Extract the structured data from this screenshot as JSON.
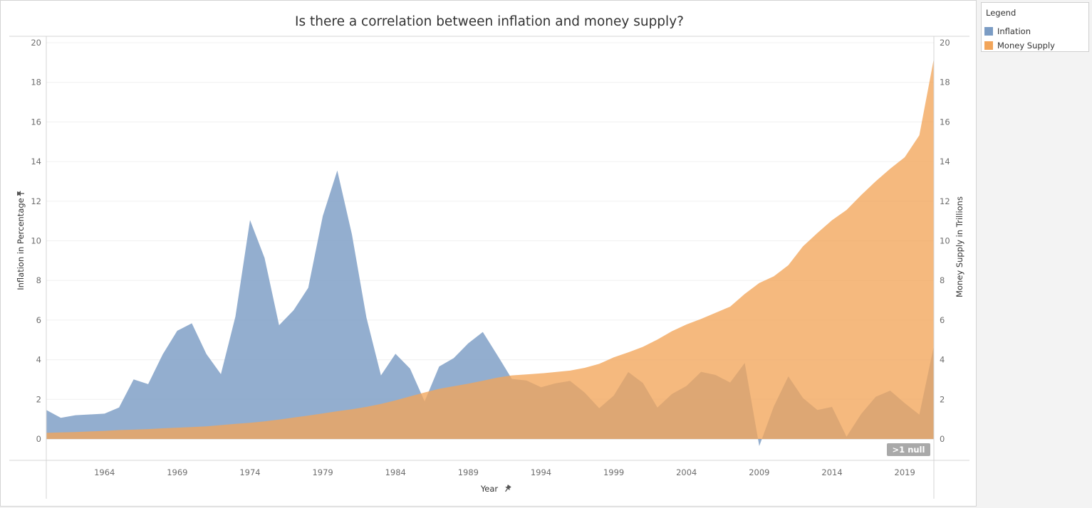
{
  "chart_data": {
    "type": "area",
    "title": "Is there a correlation between inflation and money supply?",
    "xlabel": "Year",
    "ylabel": "Inflation in Percentage",
    "y2label": "Money Supply in Trillions",
    "x_ticks": [
      "1964",
      "1969",
      "1974",
      "1979",
      "1984",
      "1989",
      "1994",
      "1999",
      "2004",
      "2009",
      "2014",
      "2019"
    ],
    "y_ticks": [
      "0",
      "2",
      "4",
      "6",
      "8",
      "10",
      "12",
      "14",
      "16",
      "18",
      "20"
    ],
    "y2_ticks": [
      "0",
      "2",
      "4",
      "6",
      "8",
      "10",
      "12",
      "14",
      "16",
      "18",
      "20"
    ],
    "ylim": [
      0,
      20
    ],
    "y2lim": [
      0,
      20
    ],
    "xlim": [
      1960,
      2021
    ],
    "grid": true,
    "legend_position": "right",
    "null_indicator": ">1 null",
    "series": [
      {
        "name": "Inflation",
        "axis": "left",
        "color": "#7b9cc4",
        "x": [
          1960,
          1961,
          1962,
          1963,
          1964,
          1965,
          1966,
          1967,
          1968,
          1969,
          1970,
          1971,
          1972,
          1973,
          1974,
          1975,
          1976,
          1977,
          1978,
          1979,
          1980,
          1981,
          1982,
          1983,
          1984,
          1985,
          1986,
          1987,
          1988,
          1989,
          1990,
          1991,
          1992,
          1993,
          1994,
          1995,
          1996,
          1997,
          1998,
          1999,
          2000,
          2001,
          2002,
          2003,
          2004,
          2005,
          2006,
          2007,
          2008,
          2009,
          2010,
          2011,
          2012,
          2013,
          2014,
          2015,
          2016,
          2017,
          2018,
          2019,
          2020,
          2021
        ],
        "values": [
          1.46,
          1.07,
          1.2,
          1.24,
          1.28,
          1.59,
          3.01,
          2.77,
          4.27,
          5.46,
          5.84,
          4.29,
          3.27,
          6.18,
          11.05,
          9.14,
          5.74,
          6.5,
          7.63,
          11.25,
          13.55,
          10.33,
          6.13,
          3.21,
          4.3,
          3.55,
          1.9,
          3.66,
          4.08,
          4.83,
          5.4,
          4.23,
          3.03,
          2.95,
          2.61,
          2.81,
          2.93,
          2.34,
          1.55,
          2.19,
          3.38,
          2.83,
          1.59,
          2.27,
          2.68,
          3.39,
          3.23,
          2.85,
          3.84,
          -0.36,
          1.64,
          3.16,
          2.07,
          1.46,
          1.62,
          0.12,
          1.26,
          2.13,
          2.44,
          1.81,
          1.23,
          4.7
        ]
      },
      {
        "name": "Money Supply",
        "axis": "right",
        "color": "#f2a55a",
        "x": [
          1960,
          1961,
          1962,
          1963,
          1964,
          1965,
          1966,
          1967,
          1968,
          1969,
          1970,
          1971,
          1972,
          1973,
          1974,
          1975,
          1976,
          1977,
          1978,
          1979,
          1980,
          1981,
          1982,
          1983,
          1984,
          1985,
          1986,
          1987,
          1988,
          1989,
          1990,
          1991,
          1992,
          1993,
          1994,
          1995,
          1996,
          1997,
          1998,
          1999,
          2000,
          2001,
          2002,
          2003,
          2004,
          2005,
          2006,
          2007,
          2008,
          2009,
          2010,
          2011,
          2012,
          2013,
          2014,
          2015,
          2016,
          2017,
          2018,
          2019,
          2020,
          2021
        ],
        "values": [
          0.31,
          0.33,
          0.35,
          0.38,
          0.41,
          0.45,
          0.47,
          0.5,
          0.54,
          0.57,
          0.6,
          0.64,
          0.7,
          0.76,
          0.82,
          0.89,
          0.98,
          1.08,
          1.18,
          1.29,
          1.4,
          1.5,
          1.62,
          1.77,
          1.95,
          2.15,
          2.35,
          2.53,
          2.66,
          2.79,
          2.94,
          3.1,
          3.21,
          3.26,
          3.31,
          3.38,
          3.45,
          3.59,
          3.79,
          4.12,
          4.37,
          4.65,
          5.02,
          5.44,
          5.78,
          6.06,
          6.37,
          6.68,
          7.32,
          7.87,
          8.21,
          8.77,
          9.72,
          10.4,
          11.04,
          11.56,
          12.31,
          13.0,
          13.64,
          14.22,
          15.33,
          19.2
        ]
      }
    ]
  }
}
